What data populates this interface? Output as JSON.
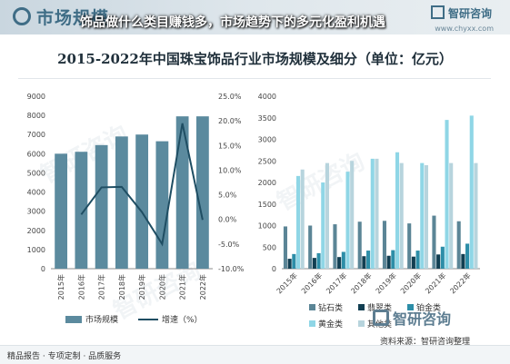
{
  "header": {
    "brand_left": "市场规模",
    "brand_right": "智研咨询",
    "site": "www.chyxx.com",
    "headline": "饰品做什么类目赚钱多，市场趋势下的多元化盈利机遇"
  },
  "footer": {
    "left_text": "精品报告 · 专项定制 · 品质服务",
    "logo": "智研咨询",
    "source": "资料来源：智研咨询整理"
  },
  "watermark_text": "智研咨询",
  "chart_data": [
    {
      "type": "bar",
      "title": "2015-2022年中国珠宝饰品行业市场规模及细分（单位：亿元）",
      "categories": [
        "2015年",
        "2016年",
        "2017年",
        "2018年",
        "2019年",
        "2020年",
        "2021年",
        "2022年"
      ],
      "series": [
        {
          "name": "市场规模",
          "type": "bar",
          "axis": "left",
          "color": "#5b8a9e",
          "values": [
            6000,
            6100,
            6450,
            6900,
            7000,
            6650,
            7950,
            7950
          ]
        },
        {
          "name": "增速（%）",
          "type": "line",
          "axis": "right",
          "color": "#1f4e63",
          "values": [
            null,
            1.0,
            6.5,
            6.6,
            1.5,
            -5.0,
            19.5,
            -0.1
          ]
        }
      ],
      "y_left": {
        "min": 0,
        "max": 9000,
        "step": 1000,
        "tick_labels": [
          "0",
          "1000",
          "2000",
          "3000",
          "4000",
          "5000",
          "6000",
          "7000",
          "8000",
          "9000"
        ]
      },
      "y_right": {
        "min": -10,
        "max": 25,
        "step": 5,
        "tick_labels": [
          "-10.0%",
          "-5.0%",
          "0.0%",
          "5.0%",
          "10.0%",
          "15.0%",
          "20.0%",
          "25.0%"
        ]
      },
      "legend": {
        "position": "bottom"
      }
    },
    {
      "type": "bar",
      "categories": [
        "2015年",
        "2016年",
        "2017年",
        "2018年",
        "2019年",
        "2020年",
        "2021年",
        "2022年"
      ],
      "series": [
        {
          "name": "钻石类",
          "color": "#5b8596",
          "values": [
            980,
            1000,
            1030,
            1090,
            1110,
            1050,
            1230,
            1100
          ]
        },
        {
          "name": "翡翠类",
          "color": "#123f52",
          "values": [
            230,
            250,
            270,
            290,
            300,
            280,
            330,
            340
          ]
        },
        {
          "name": "铂金类",
          "color": "#2d8ea8",
          "values": [
            340,
            360,
            390,
            420,
            430,
            420,
            510,
            580
          ]
        },
        {
          "name": "黄金类",
          "color": "#8fd6e6",
          "values": [
            2150,
            2000,
            2250,
            2550,
            2700,
            2450,
            3450,
            3550
          ]
        },
        {
          "name": "其他类",
          "color": "#b7d4dd",
          "values": [
            2300,
            2450,
            2500,
            2550,
            2450,
            2400,
            2450,
            2450
          ]
        }
      ],
      "y": {
        "min": 0,
        "max": 4000,
        "step": 500,
        "tick_labels": [
          "0",
          "500",
          "1000",
          "1500",
          "2000",
          "2500",
          "3000",
          "3500",
          "4000"
        ]
      },
      "legend": {
        "position": "bottom"
      }
    }
  ]
}
